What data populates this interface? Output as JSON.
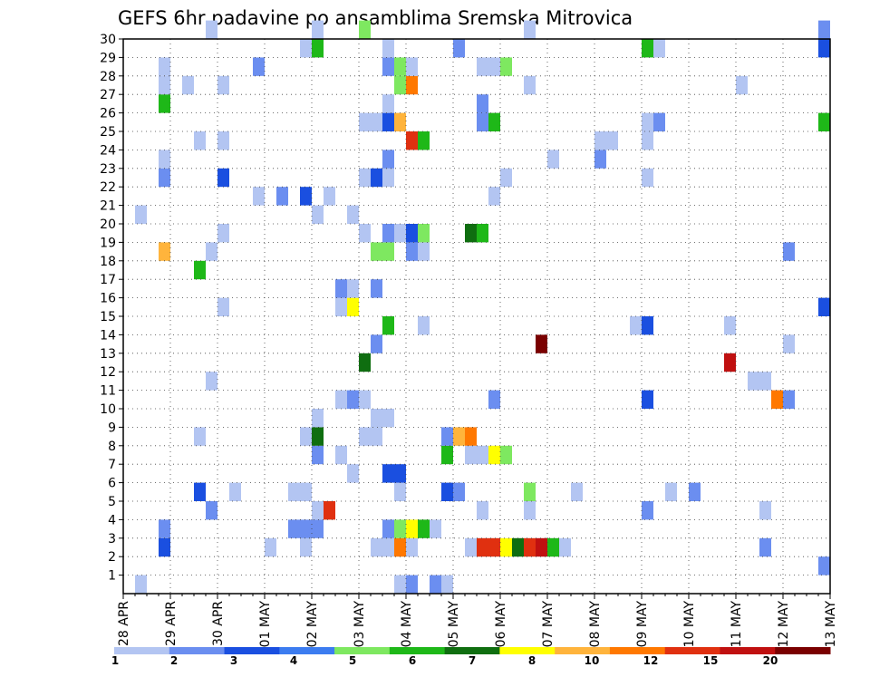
{
  "chart_data": {
    "type": "heatmap",
    "title": "GEFS 6hr padavine po ansamblima Sremska Mitrovica",
    "x_tick_labels": [
      "28 APR",
      "29 APR",
      "30 APR",
      "01 MAY",
      "02 MAY",
      "03 MAY",
      "04 MAY",
      "05 MAY",
      "06 MAY",
      "07 MAY",
      "08 MAY",
      "09 MAY",
      "10 MAY",
      "11 MAY",
      "12 MAY",
      "13 MAY"
    ],
    "y_tick_labels": [
      "1",
      "2",
      "3",
      "4",
      "5",
      "6",
      "7",
      "8",
      "9",
      "10",
      "11",
      "12",
      "13",
      "14",
      "15",
      "16",
      "17",
      "18",
      "19",
      "20",
      "21",
      "22",
      "23",
      "24",
      "25",
      "26",
      "27",
      "28",
      "29",
      "30"
    ],
    "x_range_steps": [
      0,
      60
    ],
    "y_range": [
      0,
      30
    ],
    "grid": true,
    "colorbar": {
      "ticks": [
        "1",
        "2",
        "3",
        "4",
        "5",
        "6",
        "7",
        "8",
        "10",
        "12",
        "15",
        "20"
      ],
      "colors": [
        "#b3c5f2",
        "#6b8ef0",
        "#1a4fe0",
        "#3c7cf0",
        "#7ee860",
        "#1eb818",
        "#0f6e10",
        "#ffff00",
        "#ffb43c",
        "#ff7800",
        "#e03010",
        "#c01010",
        "#7a0000"
      ]
    },
    "legend_position": "bottom",
    "cells": [
      [
        1,
        1,
        "#b3c5f2"
      ],
      [
        23,
        1,
        "#b3c5f2"
      ],
      [
        24,
        1,
        "#6b8ef0"
      ],
      [
        26,
        1,
        "#6b8ef0"
      ],
      [
        27,
        1,
        "#b3c5f2"
      ],
      [
        59,
        2,
        "#6b8ef0"
      ],
      [
        3,
        3,
        "#1a4fe0"
      ],
      [
        12,
        3,
        "#b3c5f2"
      ],
      [
        15,
        3,
        "#b3c5f2"
      ],
      [
        21,
        3,
        "#b3c5f2"
      ],
      [
        22,
        3,
        "#b3c5f2"
      ],
      [
        23,
        3,
        "#ff7800"
      ],
      [
        24,
        3,
        "#b3c5f2"
      ],
      [
        29,
        3,
        "#b3c5f2"
      ],
      [
        30,
        3,
        "#e03010"
      ],
      [
        31,
        3,
        "#e03010"
      ],
      [
        32,
        3,
        "#ffff00"
      ],
      [
        33,
        3,
        "#0f6e10"
      ],
      [
        34,
        3,
        "#e03010"
      ],
      [
        35,
        3,
        "#c01010"
      ],
      [
        36,
        3,
        "#1eb818"
      ],
      [
        37,
        3,
        "#b3c5f2"
      ],
      [
        54,
        3,
        "#6b8ef0"
      ],
      [
        3,
        4,
        "#6b8ef0"
      ],
      [
        14,
        4,
        "#6b8ef0"
      ],
      [
        15,
        4,
        "#6b8ef0"
      ],
      [
        16,
        4,
        "#6b8ef0"
      ],
      [
        22,
        4,
        "#6b8ef0"
      ],
      [
        23,
        4,
        "#7ee860"
      ],
      [
        24,
        4,
        "#ffff00"
      ],
      [
        25,
        4,
        "#1eb818"
      ],
      [
        26,
        4,
        "#b3c5f2"
      ],
      [
        7,
        5,
        "#6b8ef0"
      ],
      [
        16,
        5,
        "#b3c5f2"
      ],
      [
        17,
        5,
        "#e03010"
      ],
      [
        30,
        5,
        "#b3c5f2"
      ],
      [
        34,
        5,
        "#b3c5f2"
      ],
      [
        44,
        5,
        "#6b8ef0"
      ],
      [
        54,
        5,
        "#b3c5f2"
      ],
      [
        6,
        6,
        "#1a4fe0"
      ],
      [
        9,
        6,
        "#b3c5f2"
      ],
      [
        14,
        6,
        "#b3c5f2"
      ],
      [
        15,
        6,
        "#b3c5f2"
      ],
      [
        23,
        6,
        "#b3c5f2"
      ],
      [
        27,
        6,
        "#1a4fe0"
      ],
      [
        28,
        6,
        "#6b8ef0"
      ],
      [
        34,
        6,
        "#7ee860"
      ],
      [
        38,
        6,
        "#b3c5f2"
      ],
      [
        46,
        6,
        "#b3c5f2"
      ],
      [
        48,
        6,
        "#6b8ef0"
      ],
      [
        19,
        7,
        "#b3c5f2"
      ],
      [
        22,
        7,
        "#1a4fe0"
      ],
      [
        23,
        7,
        "#1a4fe0"
      ],
      [
        16,
        8,
        "#6b8ef0"
      ],
      [
        18,
        8,
        "#b3c5f2"
      ],
      [
        27,
        8,
        "#1eb818"
      ],
      [
        29,
        8,
        "#b3c5f2"
      ],
      [
        30,
        8,
        "#b3c5f2"
      ],
      [
        31,
        8,
        "#ffff00"
      ],
      [
        32,
        8,
        "#7ee860"
      ],
      [
        6,
        9,
        "#b3c5f2"
      ],
      [
        15,
        9,
        "#b3c5f2"
      ],
      [
        16,
        9,
        "#0f6e10"
      ],
      [
        20,
        9,
        "#b3c5f2"
      ],
      [
        21,
        9,
        "#b3c5f2"
      ],
      [
        27,
        9,
        "#6b8ef0"
      ],
      [
        28,
        9,
        "#ffb43c"
      ],
      [
        29,
        9,
        "#ff7800"
      ],
      [
        16,
        10,
        "#b3c5f2"
      ],
      [
        21,
        10,
        "#b3c5f2"
      ],
      [
        22,
        10,
        "#b3c5f2"
      ],
      [
        18,
        11,
        "#b3c5f2"
      ],
      [
        19,
        11,
        "#6b8ef0"
      ],
      [
        20,
        11,
        "#b3c5f2"
      ],
      [
        31,
        11,
        "#6b8ef0"
      ],
      [
        44,
        11,
        "#1a4fe0"
      ],
      [
        55,
        11,
        "#ff7800"
      ],
      [
        56,
        11,
        "#6b8ef0"
      ],
      [
        7,
        12,
        "#b3c5f2"
      ],
      [
        53,
        12,
        "#b3c5f2"
      ],
      [
        54,
        12,
        "#b3c5f2"
      ],
      [
        20,
        13,
        "#0f6e10"
      ],
      [
        51,
        13,
        "#c01010"
      ],
      [
        21,
        14,
        "#6b8ef0"
      ],
      [
        35,
        14,
        "#7a0000"
      ],
      [
        56,
        14,
        "#b3c5f2"
      ],
      [
        22,
        15,
        "#1eb818"
      ],
      [
        25,
        15,
        "#b3c5f2"
      ],
      [
        43,
        15,
        "#b3c5f2"
      ],
      [
        44,
        15,
        "#1a4fe0"
      ],
      [
        51,
        15,
        "#b3c5f2"
      ],
      [
        8,
        16,
        "#b3c5f2"
      ],
      [
        18,
        16,
        "#b3c5f2"
      ],
      [
        19,
        16,
        "#ffff00"
      ],
      [
        59,
        16,
        "#1a4fe0"
      ],
      [
        18,
        17,
        "#6b8ef0"
      ],
      [
        19,
        17,
        "#b3c5f2"
      ],
      [
        21,
        17,
        "#6b8ef0"
      ],
      [
        6,
        18,
        "#1eb818"
      ],
      [
        3,
        19,
        "#ffb43c"
      ],
      [
        7,
        19,
        "#b3c5f2"
      ],
      [
        21,
        19,
        "#7ee860"
      ],
      [
        22,
        19,
        "#7ee860"
      ],
      [
        24,
        19,
        "#6b8ef0"
      ],
      [
        25,
        19,
        "#b3c5f2"
      ],
      [
        56,
        19,
        "#6b8ef0"
      ],
      [
        8,
        20,
        "#b3c5f2"
      ],
      [
        20,
        20,
        "#b3c5f2"
      ],
      [
        22,
        20,
        "#6b8ef0"
      ],
      [
        23,
        20,
        "#b3c5f2"
      ],
      [
        24,
        20,
        "#1a4fe0"
      ],
      [
        25,
        20,
        "#7ee860"
      ],
      [
        29,
        20,
        "#0f6e10"
      ],
      [
        30,
        20,
        "#1eb818"
      ],
      [
        1,
        21,
        "#b3c5f2"
      ],
      [
        16,
        21,
        "#b3c5f2"
      ],
      [
        19,
        21,
        "#b3c5f2"
      ],
      [
        11,
        22,
        "#b3c5f2"
      ],
      [
        13,
        22,
        "#6b8ef0"
      ],
      [
        15,
        22,
        "#1a4fe0"
      ],
      [
        17,
        22,
        "#b3c5f2"
      ],
      [
        31,
        22,
        "#b3c5f2"
      ],
      [
        3,
        23,
        "#6b8ef0"
      ],
      [
        8,
        23,
        "#1a4fe0"
      ],
      [
        20,
        23,
        "#b3c5f2"
      ],
      [
        21,
        23,
        "#1a4fe0"
      ],
      [
        22,
        23,
        "#b3c5f2"
      ],
      [
        32,
        23,
        "#b3c5f2"
      ],
      [
        44,
        23,
        "#b3c5f2"
      ],
      [
        3,
        24,
        "#b3c5f2"
      ],
      [
        22,
        24,
        "#6b8ef0"
      ],
      [
        36,
        24,
        "#b3c5f2"
      ],
      [
        40,
        24,
        "#6b8ef0"
      ],
      [
        6,
        25,
        "#b3c5f2"
      ],
      [
        8,
        25,
        "#b3c5f2"
      ],
      [
        24,
        25,
        "#e03010"
      ],
      [
        25,
        25,
        "#1eb818"
      ],
      [
        40,
        25,
        "#b3c5f2"
      ],
      [
        41,
        25,
        "#b3c5f2"
      ],
      [
        44,
        25,
        "#b3c5f2"
      ],
      [
        20,
        26,
        "#b3c5f2"
      ],
      [
        21,
        26,
        "#b3c5f2"
      ],
      [
        22,
        26,
        "#1a4fe0"
      ],
      [
        23,
        26,
        "#ffb43c"
      ],
      [
        30,
        26,
        "#6b8ef0"
      ],
      [
        31,
        26,
        "#1eb818"
      ],
      [
        44,
        26,
        "#b3c5f2"
      ],
      [
        45,
        26,
        "#6b8ef0"
      ],
      [
        59,
        26,
        "#1eb818"
      ],
      [
        3,
        27,
        "#1eb818"
      ],
      [
        22,
        27,
        "#b3c5f2"
      ],
      [
        30,
        27,
        "#6b8ef0"
      ],
      [
        3,
        28,
        "#b3c5f2"
      ],
      [
        5,
        28,
        "#b3c5f2"
      ],
      [
        8,
        28,
        "#b3c5f2"
      ],
      [
        23,
        28,
        "#7ee860"
      ],
      [
        24,
        28,
        "#ff7800"
      ],
      [
        34,
        28,
        "#b3c5f2"
      ],
      [
        52,
        28,
        "#b3c5f2"
      ],
      [
        3,
        29,
        "#b3c5f2"
      ],
      [
        11,
        29,
        "#6b8ef0"
      ],
      [
        22,
        29,
        "#6b8ef0"
      ],
      [
        23,
        29,
        "#7ee860"
      ],
      [
        24,
        29,
        "#b3c5f2"
      ],
      [
        30,
        29,
        "#b3c5f2"
      ],
      [
        31,
        29,
        "#b3c5f2"
      ],
      [
        32,
        29,
        "#7ee860"
      ],
      [
        15,
        30,
        "#b3c5f2"
      ],
      [
        16,
        30,
        "#1eb818"
      ],
      [
        22,
        30,
        "#b3c5f2"
      ],
      [
        28,
        30,
        "#6b8ef0"
      ],
      [
        44,
        30,
        "#1eb818"
      ],
      [
        45,
        30,
        "#b3c5f2"
      ],
      [
        59,
        30,
        "#1a4fe0"
      ],
      [
        7,
        31,
        "#b3c5f2"
      ],
      [
        16,
        31,
        "#b3c5f2"
      ],
      [
        20,
        31,
        "#7ee860"
      ],
      [
        34,
        31,
        "#b3c5f2"
      ],
      [
        59,
        31,
        "#6b8ef0"
      ]
    ]
  }
}
